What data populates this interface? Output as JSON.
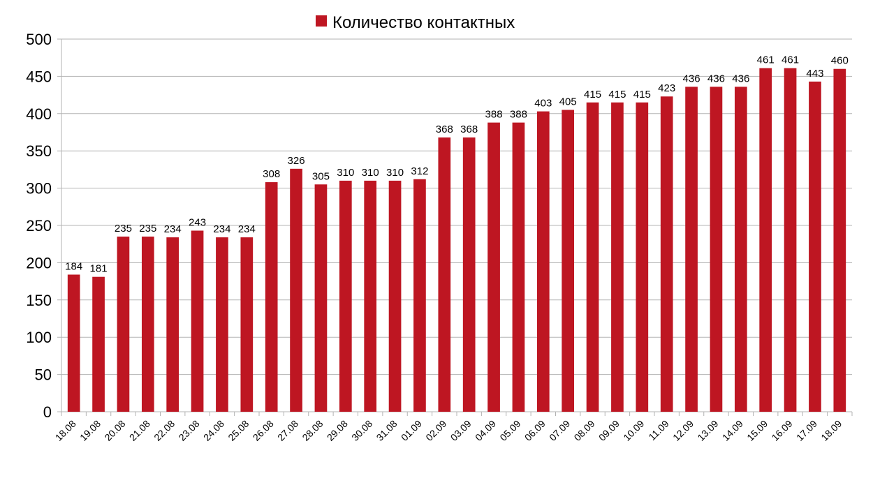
{
  "chart_data": {
    "type": "bar",
    "title": "",
    "xlabel": "",
    "ylabel": "",
    "ylim": [
      0,
      500
    ],
    "ytick_step": 50,
    "grid": true,
    "legend_position": "top",
    "categories": [
      "18.08",
      "19.08",
      "20.08",
      "21.08",
      "22.08",
      "23.08",
      "24.08",
      "25.08",
      "26.08",
      "27.08",
      "28.08",
      "29.08",
      "30.08",
      "31.08",
      "01.09",
      "02.09",
      "03.09",
      "04.09",
      "05.09",
      "06.09",
      "07.09",
      "08.09",
      "09.09",
      "10.09",
      "11.09",
      "12.09",
      "13.09",
      "14.09",
      "15.09",
      "16.09",
      "17.09",
      "18.09"
    ],
    "series": [
      {
        "name": "Количество контактных",
        "color": "#be1622",
        "values": [
          184,
          181,
          235,
          235,
          234,
          243,
          234,
          234,
          308,
          326,
          305,
          310,
          310,
          310,
          312,
          368,
          368,
          388,
          388,
          403,
          405,
          415,
          415,
          415,
          423,
          436,
          436,
          436,
          461,
          461,
          443,
          460
        ]
      }
    ]
  }
}
